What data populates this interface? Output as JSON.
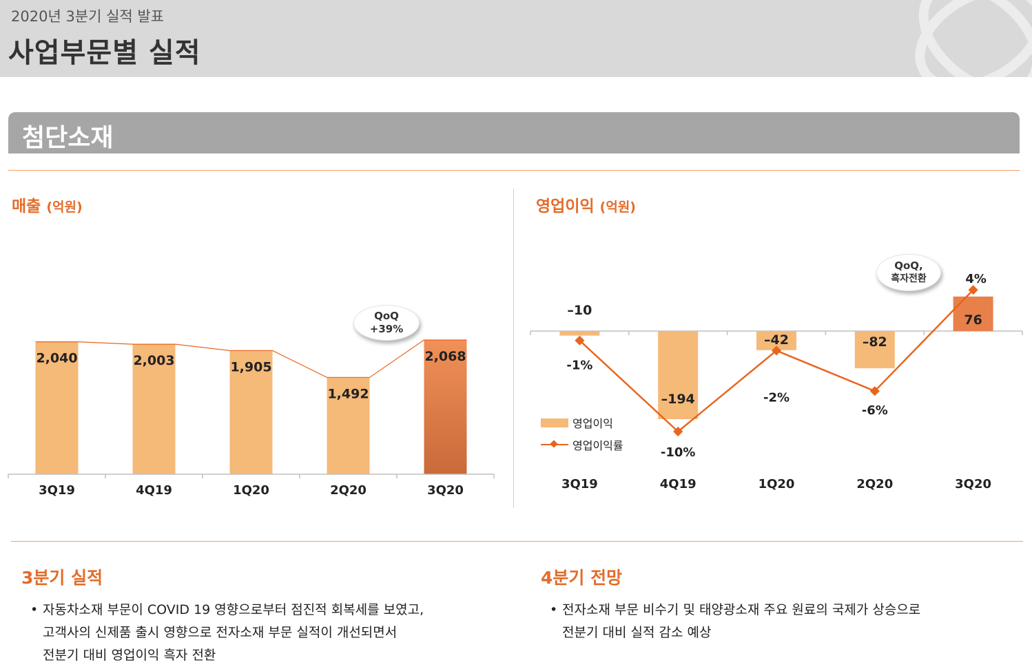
{
  "header": {
    "subtitle": "2020년 3분기 실적 발표",
    "title": "사업부문별 실적"
  },
  "section": {
    "label": "첨단소재"
  },
  "colors": {
    "accent": "#e36c2b",
    "bar": "#f5b978",
    "bar_highlight": "#e8804a",
    "line": "#e8651d"
  },
  "charts": {
    "revenue": {
      "title": "매출",
      "unit": "(억원)",
      "bubble": {
        "line1": "QoQ",
        "line2": "+39%"
      }
    },
    "op_profit": {
      "title": "영업이익",
      "unit": "(억원)",
      "bubble": {
        "line1": "QoQ,",
        "line2": "흑자전환"
      },
      "legend": {
        "bar_label": "영업이익",
        "line_label": "영업이익률"
      }
    }
  },
  "chart_data": [
    {
      "type": "bar",
      "title": "매출 (억원)",
      "categories": [
        "3Q19",
        "4Q19",
        "1Q20",
        "2Q20",
        "3Q20"
      ],
      "values": [
        2040,
        2003,
        1905,
        1492,
        2068
      ],
      "value_labels": [
        "2,040",
        "2,003",
        "1,905",
        "1,492",
        "2,068"
      ],
      "highlight_index": 4,
      "annotation": "QoQ +39%",
      "ylim": [
        0,
        2068
      ]
    },
    {
      "type": "bar",
      "title": "영업이익 (억원)",
      "categories": [
        "3Q19",
        "4Q19",
        "1Q20",
        "2Q20",
        "3Q20"
      ],
      "series": [
        {
          "name": "영업이익",
          "kind": "bar",
          "values": [
            -10,
            -194,
            -42,
            -82,
            76
          ],
          "labels": [
            "–10",
            "–194",
            "–42",
            "–82",
            "76"
          ]
        },
        {
          "name": "영업이익률",
          "kind": "line",
          "values": [
            -1,
            -10,
            -2,
            -6,
            4
          ],
          "labels": [
            "-1%",
            "-10%",
            "-2%",
            "-6%",
            "4%"
          ]
        }
      ],
      "highlight_index": 4,
      "annotation": "QoQ, 흑자전환"
    }
  ],
  "notes": {
    "q3": {
      "title": "3분기 실적",
      "bullet": "•",
      "lines": [
        "자동차소재 부문이 COVID 19 영향으로부터 점진적 회복세를 보였고,",
        "고객사의 신제품 출시 영향으로 전자소재 부문 실적이 개선되면서",
        "전분기 대비 영업이익 흑자 전환"
      ]
    },
    "q4": {
      "title": "4분기 전망",
      "bullet": "•",
      "lines": [
        "전자소재 부문 비수기 및 태양광소재 주요 원료의 국제가 상승으로",
        "전분기 대비 실적 감소 예상"
      ]
    }
  }
}
